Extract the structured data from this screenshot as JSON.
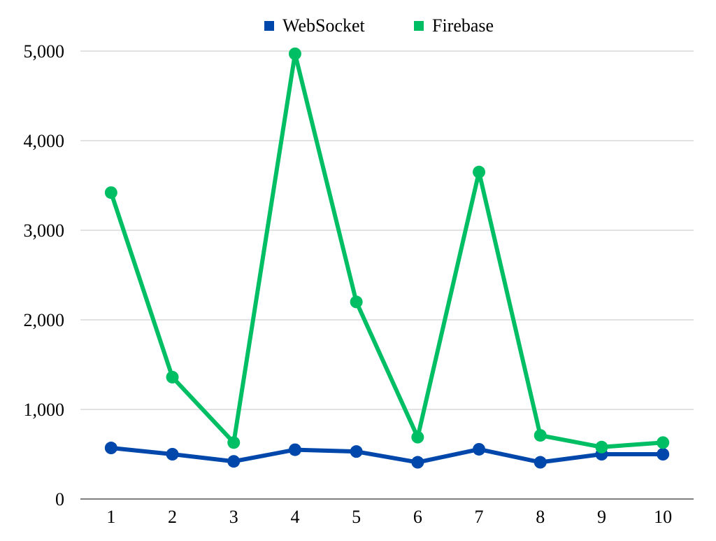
{
  "chart_data": {
    "type": "line",
    "title": "",
    "xlabel": "",
    "ylabel": "",
    "x": [
      1,
      2,
      3,
      4,
      5,
      6,
      7,
      8,
      9,
      10
    ],
    "x_tick_labels": [
      "1",
      "2",
      "3",
      "4",
      "5",
      "6",
      "7",
      "8",
      "9",
      "10"
    ],
    "ylim": [
      0,
      5000
    ],
    "y_ticks": [
      0,
      1000,
      2000,
      3000,
      4000,
      5000
    ],
    "y_tick_labels": [
      "0",
      "1,000",
      "2,000",
      "3,000",
      "4,000",
      "5,000"
    ],
    "grid": "horizontal",
    "legend_position": "top-center",
    "series": [
      {
        "name": "WebSocket",
        "color": "#0047AB",
        "values": [
          570,
          500,
          420,
          550,
          530,
          410,
          555,
          410,
          500,
          500
        ]
      },
      {
        "name": "Firebase",
        "color": "#00BE63",
        "values": [
          3420,
          1360,
          630,
          4970,
          2200,
          690,
          3650,
          710,
          580,
          630
        ]
      }
    ]
  }
}
